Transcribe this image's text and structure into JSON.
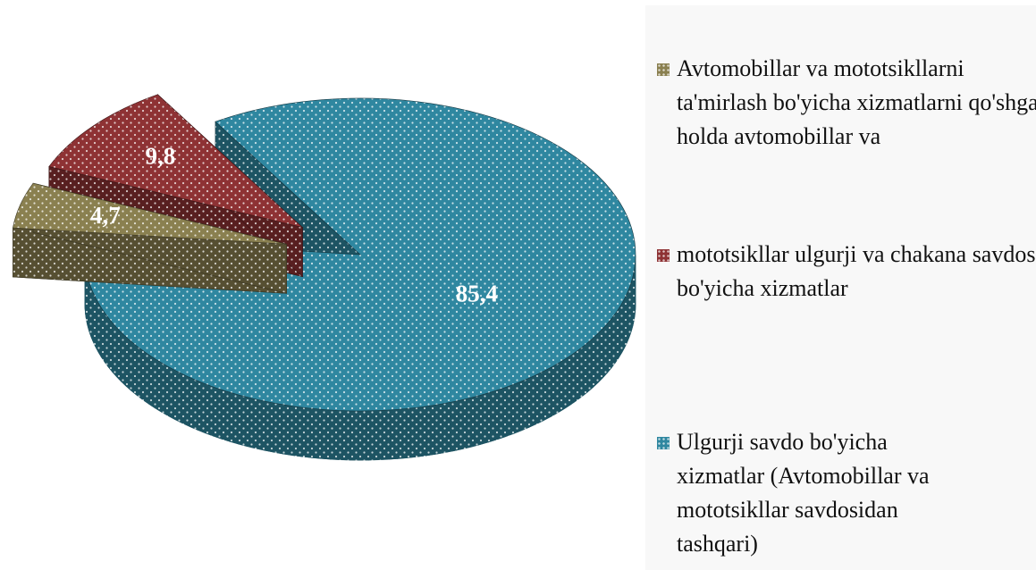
{
  "chart_data": {
    "type": "pie",
    "categories": [
      "Avtomobillar va mototsikllarni ta'mirlash bo'yicha xizmatlarni qo'shgan holda avtomobillar va",
      "mototsikllar ulgurji va chakana savdosi bo'yicha xizmatlar",
      "Ulgurji savdo bo'yicha xizmatlar (Avtomobillar va mototsikllar savdosidan tashqari)"
    ],
    "values": [
      4.7,
      9.8,
      85.4
    ],
    "value_labels": [
      "4,7",
      "9,8",
      "85,4"
    ],
    "colors": [
      "#8a8050",
      "#8e3234",
      "#2f87a0"
    ]
  }
}
